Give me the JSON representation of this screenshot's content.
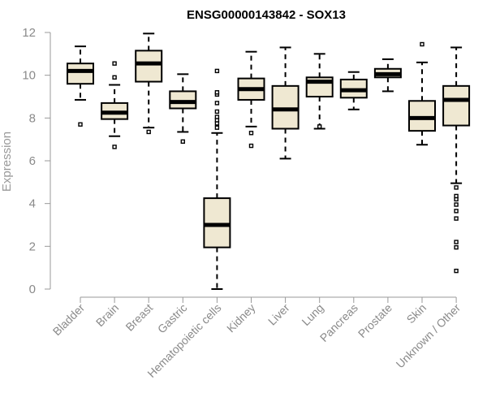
{
  "chart_data": {
    "type": "boxplot",
    "title": "ENSG00000143842 - SOX13",
    "xlabel": "",
    "ylabel": "Expression",
    "ylim": [
      0,
      12
    ],
    "yticks": [
      0,
      2,
      4,
      6,
      8,
      10,
      12
    ],
    "categories": [
      "Bladder",
      "Brain",
      "Breast",
      "Gastric",
      "Hematopoietic cells",
      "Kidney",
      "Liver",
      "Lung",
      "Pancreas",
      "Prostate",
      "Skin",
      "Unknown / Other"
    ],
    "boxes": [
      {
        "name": "Bladder",
        "whislo": 8.85,
        "q1": 9.6,
        "med": 10.2,
        "q3": 10.55,
        "whishi": 11.35,
        "fliers": [
          7.7
        ]
      },
      {
        "name": "Brain",
        "whislo": 7.15,
        "q1": 7.95,
        "med": 8.25,
        "q3": 8.7,
        "whishi": 9.55,
        "fliers": [
          6.65,
          9.9,
          10.55
        ]
      },
      {
        "name": "Breast",
        "whislo": 7.55,
        "q1": 9.7,
        "med": 10.55,
        "q3": 11.15,
        "whishi": 11.95,
        "fliers": [
          7.35
        ]
      },
      {
        "name": "Gastric",
        "whislo": 7.35,
        "q1": 8.45,
        "med": 8.75,
        "q3": 9.25,
        "whishi": 10.05,
        "fliers": [
          6.9
        ]
      },
      {
        "name": "Hematopoietic cells",
        "whislo": 0.0,
        "q1": 1.95,
        "med": 3.0,
        "q3": 4.25,
        "whishi": 7.3,
        "fliers": [
          7.55,
          7.75,
          7.9,
          8.05,
          8.3,
          8.7,
          9.1,
          9.2,
          10.2
        ]
      },
      {
        "name": "Kidney",
        "whislo": 7.6,
        "q1": 8.85,
        "med": 9.35,
        "q3": 9.85,
        "whishi": 11.1,
        "fliers": [
          6.7,
          7.3
        ]
      },
      {
        "name": "Liver",
        "whislo": 6.1,
        "q1": 7.5,
        "med": 8.4,
        "q3": 9.5,
        "whishi": 11.3,
        "fliers": []
      },
      {
        "name": "Lung",
        "whislo": 7.5,
        "q1": 9.0,
        "med": 9.7,
        "q3": 9.9,
        "whishi": 11.0,
        "fliers": [
          7.6
        ]
      },
      {
        "name": "Pancreas",
        "whislo": 8.4,
        "q1": 8.95,
        "med": 9.3,
        "q3": 9.8,
        "whishi": 10.15,
        "fliers": []
      },
      {
        "name": "Prostate",
        "whislo": 9.25,
        "q1": 9.9,
        "med": 10.05,
        "q3": 10.3,
        "whishi": 10.75,
        "fliers": []
      },
      {
        "name": "Skin",
        "whislo": 6.75,
        "q1": 7.4,
        "med": 8.0,
        "q3": 8.8,
        "whishi": 10.6,
        "fliers": [
          11.45
        ]
      },
      {
        "name": "Unknown / Other",
        "whislo": 4.95,
        "q1": 7.65,
        "med": 8.85,
        "q3": 9.5,
        "whishi": 11.3,
        "fliers": [
          0.85,
          1.95,
          2.2,
          3.3,
          3.65,
          3.95,
          4.2,
          4.35,
          4.75
        ]
      }
    ],
    "grid": false,
    "legend": "none",
    "colors": {
      "box_fill": "#efe8d2",
      "box_stroke": "#000000",
      "axis": "#999999",
      "label": "#8a8a8a"
    }
  }
}
